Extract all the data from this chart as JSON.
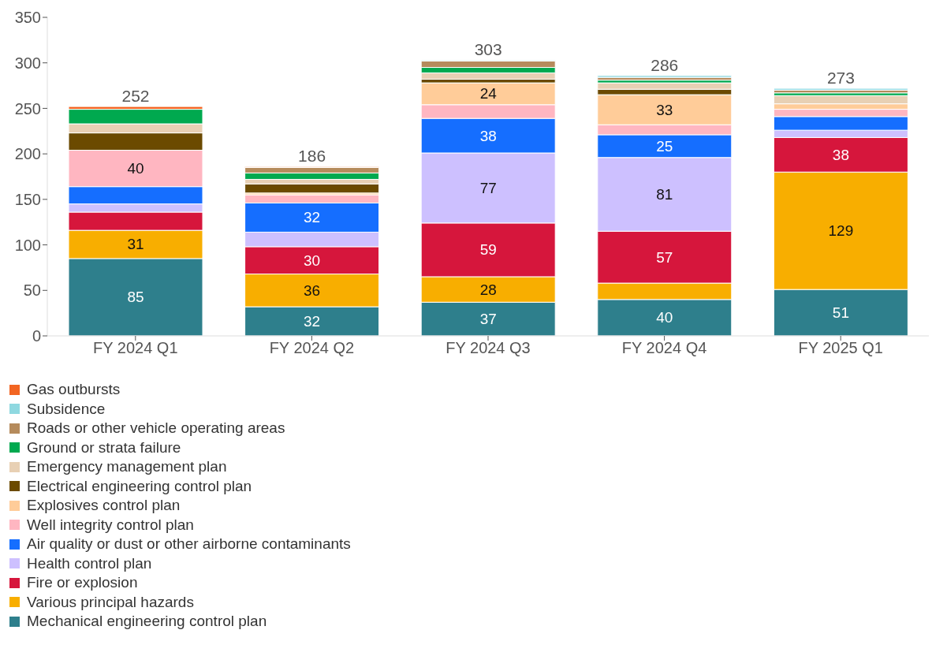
{
  "chart_data": {
    "type": "bar",
    "stacked": true,
    "categories": [
      "FY 2024 Q1",
      "FY 2024 Q2",
      "FY 2024 Q3",
      "FY 2024 Q4",
      "FY 2025 Q1"
    ],
    "ylim": [
      0,
      350
    ],
    "yticks": [
      0,
      50,
      100,
      150,
      200,
      250,
      300,
      350
    ],
    "grid": false,
    "legend": "bottom",
    "totals": [
      "252",
      "186",
      "303",
      "286",
      "273"
    ],
    "series": [
      {
        "name": "Mechanical engineering control plan",
        "color": "#2e7f8c",
        "values": [
          85,
          32,
          37,
          40,
          51
        ],
        "value_labels": [
          "85",
          "32",
          "37",
          "40",
          "51"
        ]
      },
      {
        "name": "Various principal hazards",
        "color": "#f8ae00",
        "values": [
          31,
          36,
          28,
          18,
          129
        ],
        "value_labels": [
          "31",
          "36",
          "28",
          null,
          "129"
        ]
      },
      {
        "name": "Fire or explosion",
        "color": "#d6163c",
        "values": [
          20,
          30,
          59,
          57,
          38
        ],
        "value_labels": [
          null,
          "30",
          "59",
          "57",
          "38"
        ]
      },
      {
        "name": "Health control plan",
        "color": "#cdc0ff",
        "values": [
          9,
          16,
          77,
          81,
          8
        ],
        "value_labels": [
          null,
          null,
          "77",
          "81",
          null
        ]
      },
      {
        "name": "Air quality or dust or other airborne contaminants",
        "color": "#156eff",
        "values": [
          19,
          32,
          38,
          25,
          15
        ],
        "value_labels": [
          null,
          "32",
          "38",
          "25",
          null
        ]
      },
      {
        "name": "Well integrity control plan",
        "color": "#ffb6c1",
        "values": [
          40,
          9,
          15,
          11,
          8
        ],
        "value_labels": [
          "40",
          null,
          null,
          null,
          null
        ]
      },
      {
        "name": "Explosives control plan",
        "color": "#ffcc99",
        "values": [
          0,
          2,
          24,
          33,
          6
        ],
        "value_labels": [
          null,
          null,
          "24",
          "33",
          null
        ]
      },
      {
        "name": "Electrical engineering control plan",
        "color": "#6b4a00",
        "values": [
          19,
          10,
          4,
          6,
          null
        ]
      },
      {
        "name": "Emergency management plan",
        "color": "#e8d0b4",
        "values": [
          10,
          5,
          7,
          7,
          9
        ]
      },
      {
        "name": "Ground or strata failure",
        "color": "#00a94f",
        "values": [
          16,
          7,
          6,
          3,
          3
        ]
      },
      {
        "name": "Roads or other vehicle operating areas",
        "color": "#b58b5c",
        "values": [
          0,
          6,
          7,
          3,
          3
        ]
      },
      {
        "name": "Subsidence",
        "color": "#8fd8e0",
        "values": [
          0,
          0,
          1,
          2,
          2
        ]
      },
      {
        "name": "Gas outbursts",
        "color": "#f26522",
        "values": [
          3,
          1,
          0,
          0,
          0
        ]
      }
    ]
  }
}
